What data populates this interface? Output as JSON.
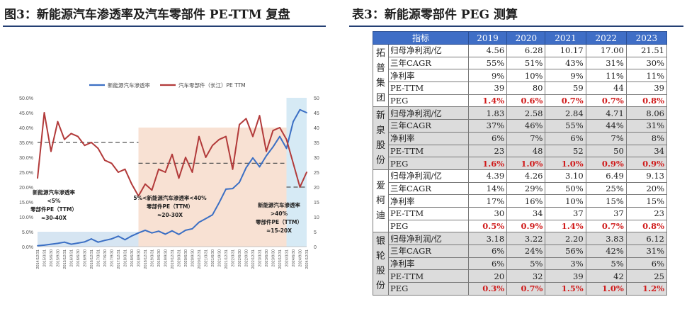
{
  "left": {
    "title": "图3：新能源汽车渗透率及汽车零部件 PE-TTM 复盘"
  },
  "right": {
    "title": "表3：新能源零部件 PEG 测算",
    "header": [
      "指标",
      "2019",
      "2020",
      "2021",
      "2022",
      "2023"
    ],
    "groups": [
      {
        "company": "拓普集团",
        "rows": [
          {
            "metric": "归母净利润/亿",
            "values": [
              "4.56",
              "6.28",
              "10.17",
              "17.00",
              "21.51"
            ]
          },
          {
            "metric": "三年CAGR",
            "values": [
              "55%",
              "51%",
              "43%",
              "31%",
              "30%"
            ]
          },
          {
            "metric": "净利率",
            "values": [
              "9%",
              "10%",
              "9%",
              "11%",
              "11%"
            ]
          },
          {
            "metric": "PE-TTM",
            "values": [
              "39",
              "80",
              "59",
              "44",
              "39"
            ]
          },
          {
            "metric": "PEG",
            "values": [
              "1.4%",
              "0.6%",
              "0.7%",
              "0.7%",
              "0.8%"
            ]
          }
        ]
      },
      {
        "company": "新泉股份",
        "rows": [
          {
            "metric": "归母净利润/亿",
            "values": [
              "1.83",
              "2.58",
              "2.84",
              "4.71",
              "8.06"
            ]
          },
          {
            "metric": "三年CAGR",
            "values": [
              "37%",
              "46%",
              "55%",
              "44%",
              "31%"
            ]
          },
          {
            "metric": "净利率",
            "values": [
              "6%",
              "7%",
              "6%",
              "7%",
              "8%"
            ]
          },
          {
            "metric": "PE-TTM",
            "values": [
              "23",
              "48",
              "52",
              "50",
              "34"
            ]
          },
          {
            "metric": "PEG",
            "values": [
              "1.6%",
              "1.0%",
              "1.0%",
              "0.9%",
              "0.9%"
            ]
          }
        ]
      },
      {
        "company": "爱柯迪",
        "rows": [
          {
            "metric": "归母净利润/亿",
            "values": [
              "4.39",
              "4.26",
              "3.10",
              "6.49",
              "9.13"
            ]
          },
          {
            "metric": "三年CAGR",
            "values": [
              "14%",
              "29%",
              "50%",
              "25%",
              "20%"
            ]
          },
          {
            "metric": "净利率",
            "values": [
              "17%",
              "16%",
              "10%",
              "15%",
              "15%"
            ]
          },
          {
            "metric": "PE-TTM",
            "values": [
              "30",
              "34",
              "37",
              "37",
              "23"
            ]
          },
          {
            "metric": "PEG",
            "values": [
              "0.5%",
              "0.9%",
              "1.4%",
              "0.7%",
              "0.8%"
            ]
          }
        ]
      },
      {
        "company": "银轮股份",
        "rows": [
          {
            "metric": "归母净利润/亿",
            "values": [
              "3.18",
              "3.22",
              "2.20",
              "3.83",
              "6.12"
            ]
          },
          {
            "metric": "三年CAGR",
            "values": [
              "6%",
              "24%",
              "56%",
              "42%",
              "31%"
            ]
          },
          {
            "metric": "净利率",
            "values": [
              "6%",
              "5%",
              "3%",
              "5%",
              "6%"
            ]
          },
          {
            "metric": "PE-TTM",
            "values": [
              "20",
              "32",
              "39",
              "42",
              "25"
            ]
          },
          {
            "metric": "PEG",
            "values": [
              "0.3%",
              "0.7%",
              "1.5%",
              "1.0%",
              "1.2%"
            ]
          }
        ]
      }
    ]
  },
  "chart_data": {
    "type": "line",
    "title": "",
    "x": [
      "2014/12/31",
      "2015/3/31",
      "2015/6/30",
      "2015/9/30",
      "2015/12/31",
      "2016/3/31",
      "2016/6/30",
      "2016/9/30",
      "2016/12/31",
      "2017/3/31",
      "2017/6/30",
      "2017/9/30",
      "2017/12/31",
      "2018/3/31",
      "2018/6/30",
      "2018/9/30",
      "2018/12/31",
      "2019/3/31",
      "2019/6/30",
      "2019/9/30",
      "2019/12/31",
      "2020/3/31",
      "2020/6/30",
      "2020/9/30",
      "2020/12/31",
      "2021/3/31",
      "2021/6/30",
      "2021/9/30",
      "2021/12/31",
      "2022/3/31",
      "2022/6/30",
      "2022/9/30",
      "2022/12/31",
      "2023/3/31",
      "2023/6/30",
      "2023/9/30",
      "2023/12/31",
      "2024/3/31",
      "2024/6/30",
      "2024/9/30",
      "2024/12/31"
    ],
    "x_tick_labels": [
      "2014/12/31",
      "2015/3/31",
      "2015/6/30",
      "2015/9/30",
      "2015/12/31",
      "2016/3/31",
      "2016/6/30",
      "2016/9/30",
      "2016/12/31",
      "2017/3/31",
      "2017/6/30",
      "2017/9/30",
      "2017/12/31",
      "2018/3/31",
      "2018/6/30",
      "2018/9/30",
      "2018/12/31",
      "2019/3/31",
      "2019/6/30",
      "2019/9/30",
      "2019/12/31",
      "2020/3/31",
      "2020/6/30",
      "2020/9/30",
      "2020/12/31",
      "2021/3/31",
      "2021/6/30",
      "2021/9/30",
      "2021/12/31",
      "2022/3/31",
      "2022/6/30",
      "2022/9/30",
      "2022/12/31",
      "2023/3/31",
      "2023/6/30",
      "2023/9/30",
      "2023/12/31",
      "2024/3/31",
      "2024/6/30",
      "2024/9/30",
      "2024/12/31"
    ],
    "y_left": {
      "ylim": [
        0,
        50
      ],
      "ticks": [
        "0.0%",
        "5.0%",
        "10.0%",
        "15.0%",
        "20.0%",
        "25.0%",
        "30.0%",
        "35.0%",
        "40.0%",
        "45.0%",
        "50.0%"
      ]
    },
    "y_right": {
      "ylim": [
        0,
        50
      ],
      "ticks": [
        "0",
        "5",
        "10",
        "15",
        "20",
        "25",
        "30",
        "35",
        "40",
        "45",
        "50"
      ]
    },
    "series": [
      {
        "name": "新能源汽车渗透率",
        "axis": "left",
        "color": "#3b6fc4",
        "values": [
          0.3,
          0.5,
          0.8,
          1.1,
          1.5,
          0.8,
          1.2,
          1.6,
          2.6,
          1.5,
          2.1,
          2.6,
          3.5,
          2.3,
          3.6,
          4.6,
          5.5,
          4.6,
          5.2,
          4.2,
          5.3,
          4.1,
          5.5,
          6.0,
          8.2,
          9.4,
          10.7,
          14.8,
          19.3,
          19.5,
          21.6,
          26.5,
          29.8,
          26.8,
          30.5,
          33.5,
          37.0,
          33.0,
          42.0,
          46.0,
          45.0
        ]
      },
      {
        "name": "汽车零部件（长江）PE TTM",
        "axis": "right",
        "color": "#b23a3a",
        "values": [
          23,
          45,
          32,
          42,
          36,
          38,
          37,
          34,
          35,
          33,
          29,
          28,
          25,
          26,
          21,
          17,
          21,
          19,
          26,
          25,
          31,
          23,
          30,
          25,
          37,
          30,
          34,
          36,
          37,
          26,
          41,
          43,
          37,
          44,
          32,
          39,
          40,
          36,
          28,
          20,
          25
        ]
      }
    ],
    "regions": [
      {
        "label": "新能源汽车渗透率\n<5%\n零部件PE（TTM）\n≈30-40X",
        "x_start": "2014/12/31",
        "x_end": "2018/9/30",
        "color": "#cfe0f0",
        "y_range": [
          0,
          5
        ]
      },
      {
        "label": "5%<新能源汽车渗透率<40%\n零部件PE（TTM）\n≈20-30X",
        "x_start": "2018/9/30",
        "x_end": "2024/3/31",
        "color": "#f7dccb",
        "y_range": [
          0,
          40
        ]
      },
      {
        "label": "新能源汽车渗透率\n>40%\n零部件PE（TTM）\n≈15-20X",
        "x_start": "2024/3/31",
        "x_end": "2024/12/31",
        "color": "#cfe6f3",
        "y_range": [
          0,
          50
        ]
      }
    ],
    "reference_lines": [
      {
        "axis": "right",
        "value": 35,
        "x_start": "2014/12/31",
        "x_end": "2018/9/30"
      },
      {
        "axis": "right",
        "value": 28,
        "x_start": "2018/9/30",
        "x_end": "2024/3/31"
      },
      {
        "axis": "right",
        "value": 20,
        "x_start": "2024/3/31",
        "x_end": "2024/12/31"
      }
    ],
    "legend_position": "top",
    "grid": false
  }
}
